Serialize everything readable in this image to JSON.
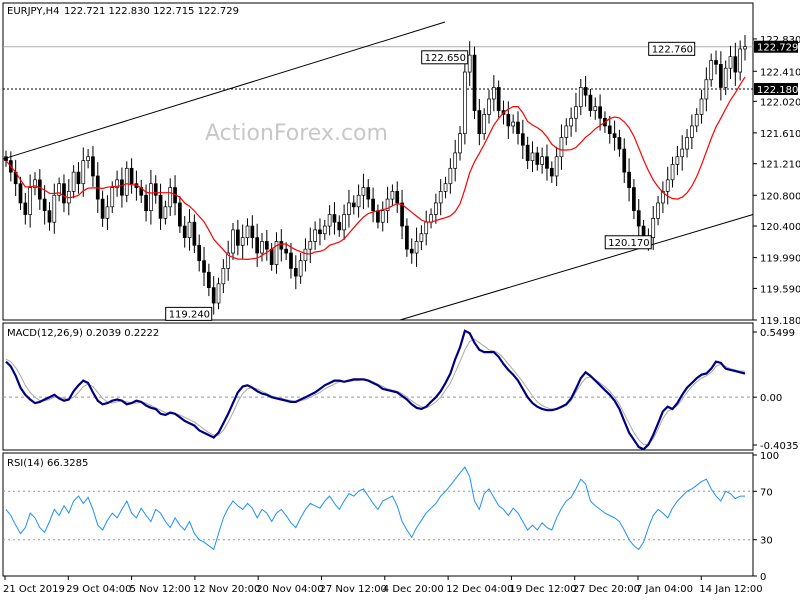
{
  "header": {
    "symbol": "EURJPY,H4",
    "ohlc": "122.721 122.830 122.715 122.729"
  },
  "watermark": "ActionForex.com",
  "colors": {
    "candle": "#000000",
    "ma": "#ff0000",
    "channel": "#000000",
    "macd_main": "#000080",
    "macd_signal": "#a9a9a9",
    "rsi": "#1e90ff",
    "label_fill": "#ffffff",
    "current_price_bg": "#000000"
  },
  "chart_data": [
    {
      "type": "candlestick",
      "title": "EURJPY,H4",
      "ylim": [
        119.18,
        123.05
      ],
      "y_ticks": [
        "122.830",
        "122.410",
        "122.020",
        "121.610",
        "121.210",
        "120.800",
        "120.400",
        "119.990",
        "119.590",
        "119.180"
      ],
      "x_ticks": [
        "21 Oct 2019",
        "29 Oct 04:00",
        "5 Nov 12:00",
        "12 Nov 20:00",
        "20 Nov 04:00",
        "27 Nov 12:00",
        "4 Dec 20:00",
        "12 Dec 04:00",
        "19 Dec 12:00",
        "27 Dec 20:00",
        "7 Jan 04:00",
        "14 Jan 12:00"
      ],
      "horizontal_levels": [
        {
          "value": 122.729,
          "label": "122.729",
          "style": "current"
        },
        {
          "value": 122.18,
          "label": "122.180",
          "style": "dashed"
        }
      ],
      "annotations": [
        {
          "text": "122.650",
          "value": 122.65,
          "x_index": 96
        },
        {
          "text": "122.760",
          "value": 122.76,
          "x_index": 143
        },
        {
          "text": "119.240",
          "value": 119.24,
          "x_index": 43
        },
        {
          "text": "120.170",
          "value": 120.17,
          "x_index": 134
        }
      ],
      "closes": [
        121.25,
        121.1,
        120.95,
        120.7,
        120.55,
        120.9,
        121.0,
        120.75,
        120.6,
        120.45,
        120.8,
        120.95,
        120.7,
        120.85,
        121.1,
        120.95,
        121.25,
        121.3,
        121.05,
        120.75,
        120.5,
        120.65,
        120.9,
        121.0,
        120.8,
        121.15,
        120.95,
        120.9,
        120.8,
        120.6,
        120.95,
        120.8,
        120.5,
        120.65,
        120.9,
        120.7,
        120.4,
        120.25,
        120.45,
        120.15,
        119.95,
        119.8,
        119.6,
        119.4,
        119.65,
        119.85,
        120.05,
        120.35,
        120.15,
        120.25,
        120.4,
        120.25,
        120.05,
        120.2,
        120.1,
        119.9,
        120.2,
        120.1,
        120.05,
        119.85,
        119.75,
        119.95,
        120.1,
        120.2,
        120.35,
        120.3,
        120.4,
        120.55,
        120.45,
        120.35,
        120.55,
        120.7,
        120.65,
        120.8,
        120.9,
        120.75,
        120.6,
        120.45,
        120.6,
        120.75,
        120.85,
        120.7,
        120.4,
        120.1,
        120.05,
        120.2,
        120.3,
        120.45,
        120.55,
        120.7,
        120.85,
        120.95,
        121.15,
        121.35,
        121.6,
        122.4,
        122.62,
        121.9,
        121.6,
        121.85,
        122.05,
        122.2,
        121.9,
        121.85,
        121.7,
        121.75,
        121.6,
        121.45,
        121.25,
        121.35,
        121.2,
        121.3,
        121.15,
        121.05,
        121.3,
        121.55,
        121.7,
        121.8,
        121.95,
        122.2,
        122.1,
        121.9,
        121.95,
        121.8,
        121.7,
        121.6,
        121.55,
        121.4,
        121.1,
        120.9,
        120.6,
        120.4,
        120.2,
        120.25,
        120.5,
        120.7,
        120.85,
        121.0,
        121.2,
        121.3,
        121.4,
        121.55,
        121.7,
        121.85,
        122.05,
        122.3,
        122.55,
        122.5,
        122.2,
        122.45,
        122.6,
        122.4,
        122.7,
        122.729
      ]
    },
    {
      "type": "line",
      "title": "MACD(12,26,9) 0.2039 0.2222",
      "ylim": [
        -0.4035,
        0.5499
      ],
      "y_ticks": [
        "0.5499",
        "0.00",
        "-0.4035"
      ],
      "series": [
        {
          "name": "MACD",
          "values": [
            0.3,
            0.26,
            0.18,
            0.08,
            0.02,
            -0.02,
            -0.05,
            -0.04,
            -0.02,
            0.0,
            0.02,
            -0.01,
            -0.03,
            -0.02,
            0.05,
            0.1,
            0.14,
            0.12,
            0.04,
            -0.03,
            -0.06,
            -0.05,
            -0.03,
            -0.02,
            -0.03,
            -0.06,
            -0.05,
            -0.03,
            -0.04,
            -0.07,
            -0.09,
            -0.1,
            -0.14,
            -0.15,
            -0.13,
            -0.14,
            -0.17,
            -0.2,
            -0.22,
            -0.24,
            -0.28,
            -0.3,
            -0.32,
            -0.34,
            -0.3,
            -0.22,
            -0.14,
            -0.05,
            0.04,
            0.09,
            0.1,
            0.08,
            0.05,
            0.03,
            0.02,
            0.0,
            -0.01,
            -0.02,
            -0.03,
            -0.04,
            -0.04,
            -0.02,
            0.0,
            0.02,
            0.04,
            0.07,
            0.1,
            0.12,
            0.14,
            0.14,
            0.13,
            0.14,
            0.15,
            0.15,
            0.15,
            0.14,
            0.12,
            0.1,
            0.07,
            0.06,
            0.05,
            0.04,
            0.01,
            -0.02,
            -0.06,
            -0.09,
            -0.1,
            -0.08,
            -0.04,
            0.0,
            0.05,
            0.12,
            0.2,
            0.32,
            0.42,
            0.56,
            0.54,
            0.46,
            0.4,
            0.38,
            0.38,
            0.38,
            0.34,
            0.28,
            0.23,
            0.19,
            0.14,
            0.07,
            0.0,
            -0.05,
            -0.08,
            -0.1,
            -0.11,
            -0.11,
            -0.1,
            -0.08,
            -0.06,
            -0.01,
            0.07,
            0.16,
            0.21,
            0.18,
            0.14,
            0.1,
            0.06,
            0.02,
            -0.03,
            -0.1,
            -0.2,
            -0.3,
            -0.36,
            -0.42,
            -0.44,
            -0.4,
            -0.32,
            -0.22,
            -0.12,
            -0.08,
            -0.1,
            -0.05,
            0.02,
            0.08,
            0.12,
            0.16,
            0.19,
            0.2,
            0.24,
            0.3,
            0.29,
            0.24,
            0.23,
            0.22,
            0.21,
            0.2
          ]
        },
        {
          "name": "Signal",
          "values": [
            0.32,
            0.3,
            0.25,
            0.18,
            0.1,
            0.04,
            0.0,
            -0.03,
            -0.03,
            -0.02,
            0.0,
            0.0,
            -0.01,
            -0.02,
            0.0,
            0.04,
            0.09,
            0.11,
            0.09,
            0.04,
            -0.01,
            -0.04,
            -0.05,
            -0.04,
            -0.03,
            -0.04,
            -0.05,
            -0.05,
            -0.04,
            -0.05,
            -0.07,
            -0.09,
            -0.11,
            -0.13,
            -0.14,
            -0.14,
            -0.15,
            -0.17,
            -0.19,
            -0.21,
            -0.24,
            -0.27,
            -0.3,
            -0.32,
            -0.32,
            -0.28,
            -0.21,
            -0.13,
            -0.04,
            0.03,
            0.07,
            0.08,
            0.07,
            0.05,
            0.03,
            0.01,
            0.0,
            -0.01,
            -0.02,
            -0.03,
            -0.04,
            -0.03,
            -0.02,
            0.0,
            0.02,
            0.04,
            0.07,
            0.09,
            0.11,
            0.13,
            0.13,
            0.13,
            0.14,
            0.14,
            0.15,
            0.14,
            0.13,
            0.11,
            0.09,
            0.07,
            0.06,
            0.05,
            0.03,
            0.0,
            -0.03,
            -0.06,
            -0.08,
            -0.09,
            -0.07,
            -0.04,
            0.0,
            0.06,
            0.12,
            0.21,
            0.3,
            0.4,
            0.47,
            0.49,
            0.46,
            0.43,
            0.4,
            0.39,
            0.37,
            0.33,
            0.28,
            0.23,
            0.18,
            0.13,
            0.07,
            0.01,
            -0.04,
            -0.07,
            -0.09,
            -0.1,
            -0.1,
            -0.09,
            -0.07,
            -0.03,
            0.04,
            0.11,
            0.16,
            0.17,
            0.15,
            0.12,
            0.09,
            0.05,
            0.0,
            -0.06,
            -0.14,
            -0.22,
            -0.3,
            -0.36,
            -0.4,
            -0.4,
            -0.35,
            -0.27,
            -0.18,
            -0.12,
            -0.1,
            -0.07,
            -0.02,
            0.04,
            0.09,
            0.13,
            0.16,
            0.18,
            0.21,
            0.26,
            0.28,
            0.26,
            0.24,
            0.23,
            0.22,
            0.22
          ]
        }
      ]
    },
    {
      "type": "line",
      "title": "RSI(14) 66.3285",
      "ylim": [
        0,
        100
      ],
      "y_ticks": [
        "100",
        "70",
        "30",
        "0"
      ],
      "levels": [
        70,
        30
      ],
      "series": [
        {
          "name": "RSI",
          "values": [
            55,
            50,
            42,
            35,
            40,
            52,
            48,
            40,
            36,
            45,
            55,
            50,
            58,
            52,
            62,
            66,
            60,
            65,
            55,
            42,
            38,
            46,
            52,
            48,
            55,
            62,
            52,
            48,
            56,
            50,
            45,
            55,
            52,
            45,
            40,
            48,
            42,
            38,
            45,
            35,
            30,
            28,
            25,
            22,
            35,
            48,
            56,
            62,
            58,
            55,
            60,
            56,
            48,
            55,
            52,
            45,
            52,
            55,
            50,
            44,
            40,
            48,
            55,
            60,
            58,
            56,
            62,
            66,
            60,
            55,
            62,
            68,
            66,
            70,
            72,
            66,
            60,
            55,
            62,
            64,
            66,
            58,
            45,
            38,
            32,
            40,
            46,
            52,
            56,
            60,
            66,
            70,
            75,
            80,
            85,
            90,
            82,
            62,
            55,
            68,
            72,
            65,
            58,
            55,
            50,
            56,
            52,
            45,
            38,
            42,
            38,
            44,
            40,
            38,
            48,
            56,
            62,
            65,
            72,
            80,
            76,
            62,
            58,
            55,
            52,
            50,
            48,
            45,
            38,
            30,
            25,
            22,
            28,
            40,
            50,
            55,
            52,
            48,
            56,
            62,
            66,
            70,
            72,
            75,
            78,
            80,
            72,
            66,
            62,
            70,
            68,
            64,
            66,
            66
          ]
        }
      ]
    }
  ]
}
